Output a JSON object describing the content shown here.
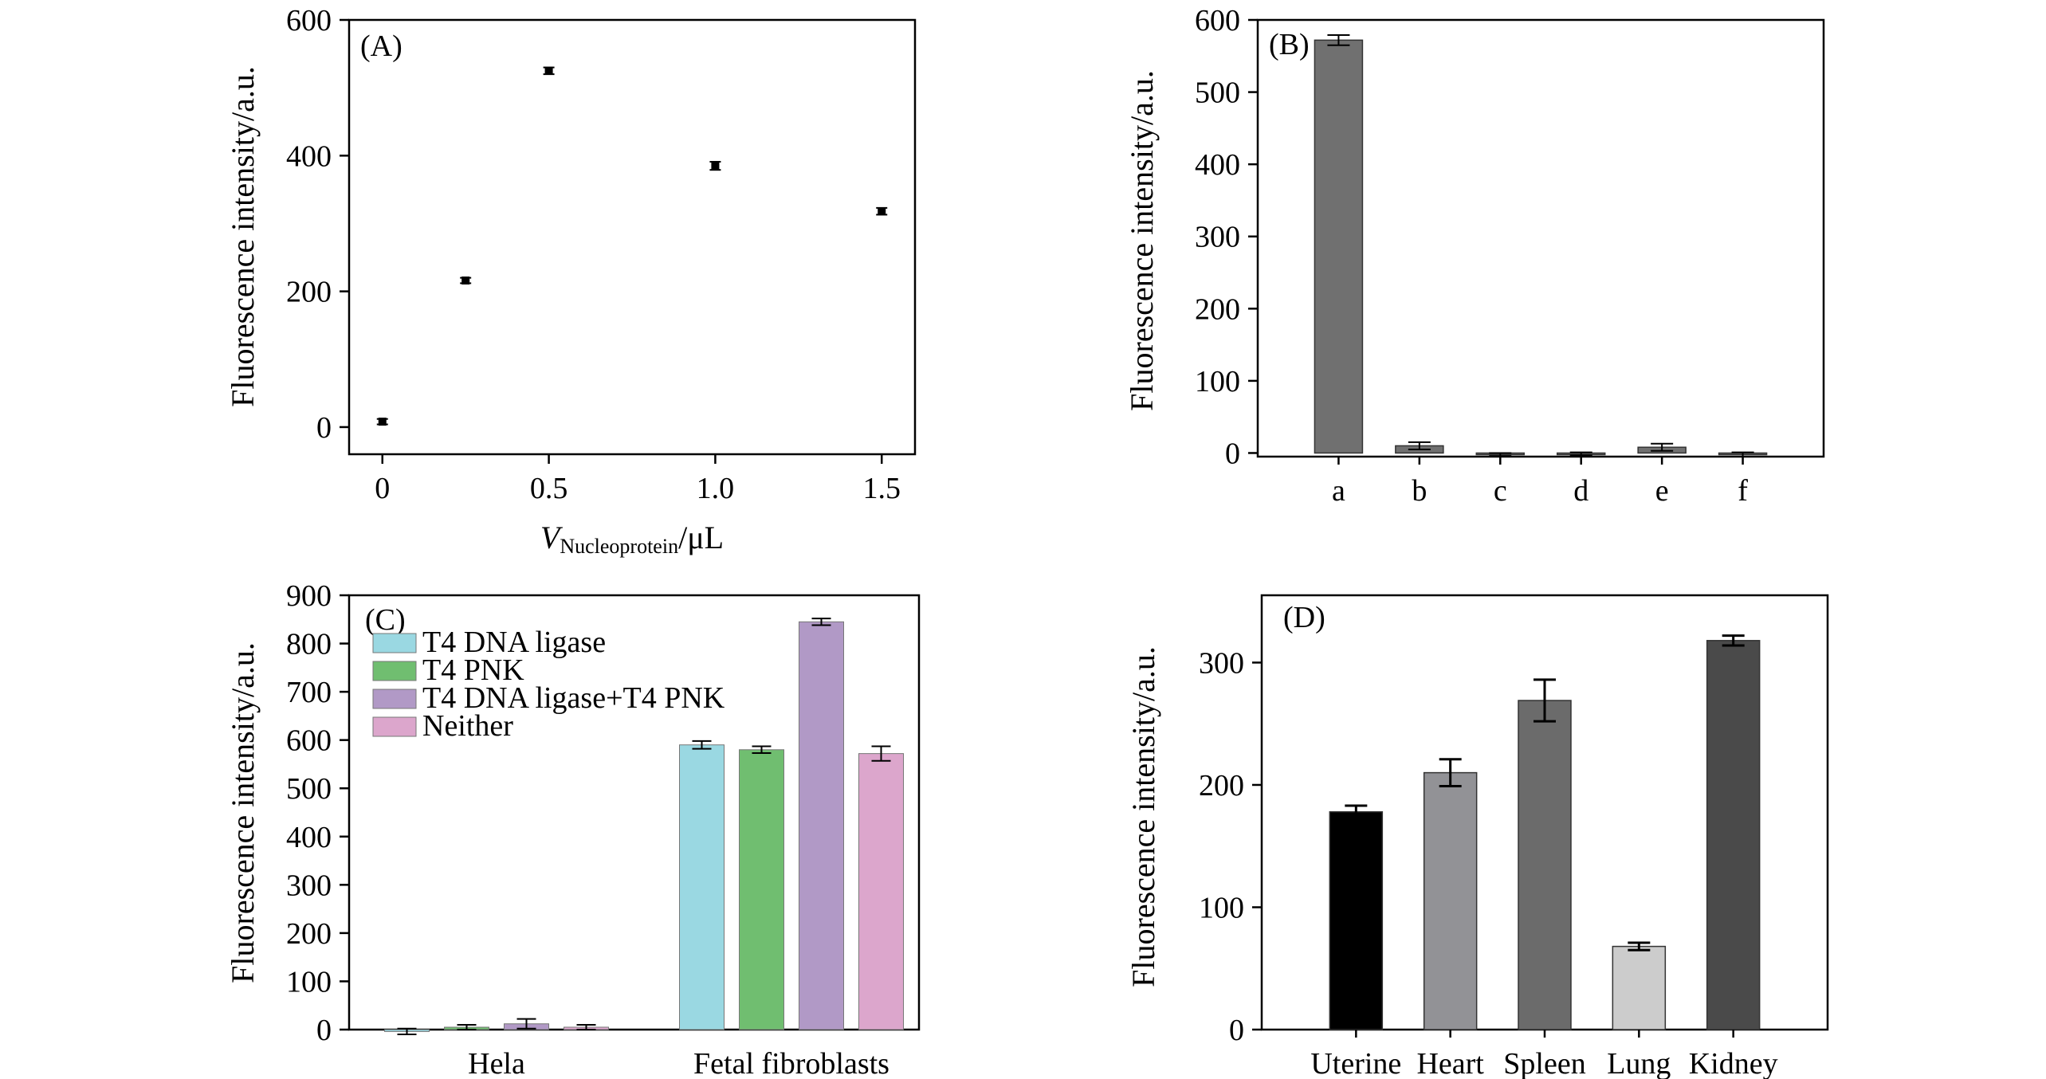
{
  "chart_data": [
    {
      "panel": "(A)",
      "type": "scatter",
      "title": "",
      "xlabel_italic": "V",
      "xlabel_sub": "Nucleoprotein",
      "xlabel_tail": "/μL",
      "ylabel": "Fluorescence intensity/a.u.",
      "xlim": [
        -0.1,
        1.6
      ],
      "ylim": [
        -40,
        600
      ],
      "xticks": [
        0,
        0.5,
        1.0,
        1.5
      ],
      "xtick_labels": [
        "0",
        "0.5",
        "1.0",
        "1.5"
      ],
      "yticks": [
        0,
        200,
        400,
        600
      ],
      "ytick_labels": [
        "0",
        "200",
        "400",
        "600"
      ],
      "x": [
        0,
        0.25,
        0.5,
        1.0,
        1.5
      ],
      "y": [
        8,
        216,
        525,
        385,
        318
      ],
      "err": [
        4,
        4,
        5,
        6,
        5
      ],
      "color": "#000000"
    },
    {
      "panel": "(B)",
      "type": "bar",
      "ylabel": "Fluorescence intensity/a.u.",
      "xlabel": "",
      "ylim": [
        -5,
        600
      ],
      "yticks": [
        0,
        100,
        200,
        300,
        400,
        500,
        600
      ],
      "ytick_labels": [
        "0",
        "100",
        "200",
        "300",
        "400",
        "500",
        "600"
      ],
      "categories": [
        "a",
        "b",
        "c",
        "d",
        "e",
        "f"
      ],
      "values": [
        572,
        10,
        -2,
        -1,
        8,
        -2
      ],
      "err": [
        7,
        5,
        2,
        2,
        5,
        3
      ],
      "color": "#707070"
    },
    {
      "panel": "(C)",
      "type": "bar",
      "ylabel": "Fluorescence intensity/a.u.",
      "xlabel": "",
      "ylim": [
        0,
        900
      ],
      "yticks": [
        0,
        100,
        200,
        300,
        400,
        500,
        600,
        700,
        800,
        900
      ],
      "ytick_labels": [
        "0",
        "100",
        "200",
        "300",
        "400",
        "500",
        "600",
        "700",
        "800",
        "900"
      ],
      "categories": [
        "Hela",
        "Fetal fibroblasts"
      ],
      "legend_position": "top-left",
      "series": [
        {
          "name": "T4 DNA ligase",
          "color": "#9ad8e2",
          "values": [
            -4,
            590
          ],
          "err": [
            6,
            8
          ]
        },
        {
          "name": "T4 PNK",
          "color": "#70be70",
          "values": [
            5,
            580
          ],
          "err": [
            5,
            7
          ]
        },
        {
          "name": "T4 DNA ligase+T4 PNK",
          "color": "#b199c6",
          "values": [
            12,
            845
          ],
          "err": [
            10,
            7
          ]
        },
        {
          "name": "Neither",
          "color": "#dca6cc",
          "values": [
            5,
            572
          ],
          "err": [
            5,
            15
          ]
        }
      ]
    },
    {
      "panel": "(D)",
      "type": "bar",
      "ylabel": "Fluorescence intensity/a.u.",
      "xlabel": "",
      "ylim": [
        0,
        355
      ],
      "yticks": [
        0,
        100,
        200,
        300
      ],
      "ytick_labels": [
        "0",
        "100",
        "200",
        "300"
      ],
      "categories": [
        "Uterine",
        "Heart",
        "Spleen",
        "Lung",
        "Kidney"
      ],
      "values": [
        178,
        210,
        269,
        68,
        318
      ],
      "err": [
        5,
        11,
        17,
        3,
        4
      ],
      "colors": [
        "#000000",
        "#929296",
        "#6b6b6b",
        "#cccccc",
        "#4a4a4a"
      ]
    }
  ]
}
